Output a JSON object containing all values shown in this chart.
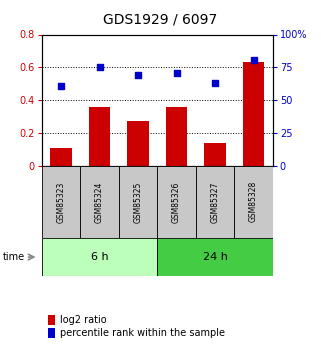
{
  "title": "GDS1929 / 6097",
  "categories": [
    "GSM85323",
    "GSM85324",
    "GSM85325",
    "GSM85326",
    "GSM85327",
    "GSM85328"
  ],
  "log2_ratio": [
    0.11,
    0.36,
    0.27,
    0.36,
    0.14,
    0.63
  ],
  "percentile_rank": [
    61.0,
    75.0,
    69.0,
    71.0,
    63.0,
    80.5
  ],
  "bar_color": "#cc0000",
  "dot_color": "#0000cc",
  "left_ylim": [
    0,
    0.8
  ],
  "right_ylim": [
    0,
    100
  ],
  "left_yticks": [
    0,
    0.2,
    0.4,
    0.6,
    0.8
  ],
  "left_yticklabels": [
    "0",
    "0.2",
    "0.4",
    "0.6",
    "0.8"
  ],
  "right_yticks": [
    0,
    25,
    50,
    75,
    100
  ],
  "right_yticklabels": [
    "0",
    "25",
    "50",
    "75",
    "100%"
  ],
  "group1_label": "6 h",
  "group2_label": "24 h",
  "group1_color": "#bbffbb",
  "group2_color": "#44cc44",
  "legend_bar_label": "log2 ratio",
  "legend_dot_label": "percentile rank within the sample",
  "time_label": "time",
  "background_color": "#ffffff",
  "title_fontsize": 10,
  "tick_fontsize": 7,
  "legend_fontsize": 7,
  "sample_fontsize": 5.5,
  "group_fontsize": 8
}
